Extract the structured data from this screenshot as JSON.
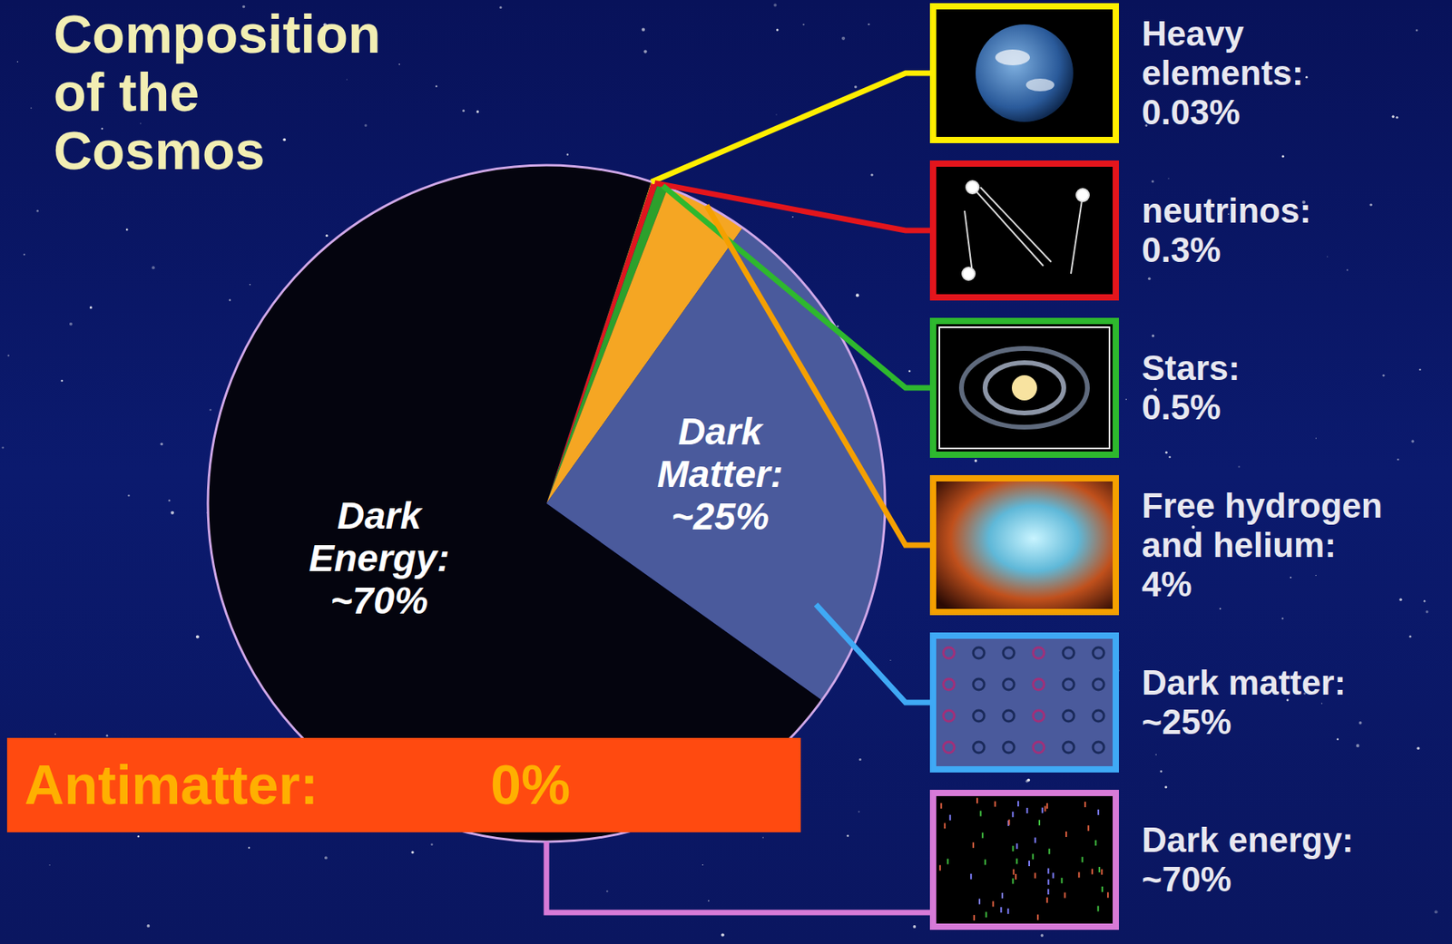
{
  "chart_data": {
    "type": "pie",
    "title": "Composition of the Cosmos",
    "categories": [
      "Heavy elements:",
      "neutrinos:",
      "Stars:",
      "Free hydrogen and helium:",
      "Dark matter:",
      "Dark energy:"
    ],
    "values": [
      0.03,
      0.3,
      0.5,
      4,
      25,
      70
    ],
    "value_labels": [
      "0.03%",
      "0.3%",
      "0.5%",
      "4%",
      "~25%",
      "~70%"
    ],
    "colors": [
      "#ffe800",
      "#e0141e",
      "#2ca02c",
      "#f5a623",
      "#4a5a9c",
      "#04040e"
    ],
    "annotations": [
      {
        "text": "Dark Energy:",
        "value": 70,
        "label": "~70%"
      },
      {
        "text": "Dark Matter:",
        "value": 25,
        "label": "~25%"
      },
      {
        "text": "Antimatter:",
        "value": 0,
        "label": "0%"
      }
    ]
  }
}
